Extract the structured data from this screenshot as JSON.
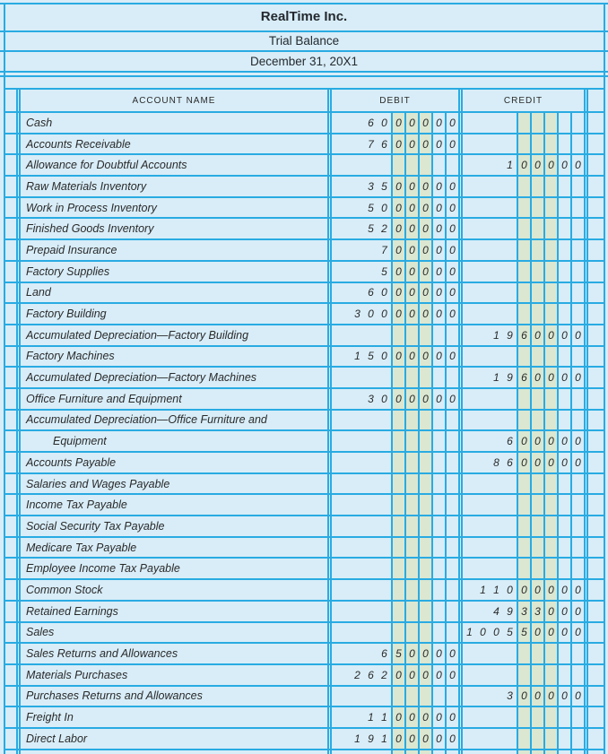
{
  "page": {
    "header": {
      "company_name": "RealTime Inc.",
      "report_title": "Trial Balance",
      "report_date": "December 31, 20X1"
    },
    "table": {
      "column_headers": {
        "account_name": "ACCOUNT NAME",
        "debit": "DEBIT",
        "credit": "CREDIT"
      },
      "rows": [
        {
          "account": "Cash",
          "debit": "6000000",
          "credit": ""
        },
        {
          "account": "Accounts Receivable",
          "debit": "7600000",
          "credit": ""
        },
        {
          "account": "Allowance for Doubtful Accounts",
          "debit": "",
          "credit": "100000"
        },
        {
          "account": "Raw Materials Inventory",
          "debit": "3500000",
          "credit": ""
        },
        {
          "account": "Work in Process Inventory",
          "debit": "5000000",
          "credit": ""
        },
        {
          "account": "Finished Goods Inventory",
          "debit": "5200000",
          "credit": ""
        },
        {
          "account": "Prepaid Insurance",
          "debit": "700000",
          "credit": ""
        },
        {
          "account": "Factory Supplies",
          "debit": "500000",
          "credit": ""
        },
        {
          "account": "Land",
          "debit": "6000000",
          "credit": ""
        },
        {
          "account": "Factory Building",
          "debit": "30000000",
          "credit": ""
        },
        {
          "account": "Accumulated Depreciation—Factory Building",
          "debit": "",
          "credit": "1960000"
        },
        {
          "account": "Factory Machines",
          "debit": "15000000",
          "credit": ""
        },
        {
          "account": "Accumulated Depreciation—Factory Machines",
          "debit": "",
          "credit": "1960000"
        },
        {
          "account": "Office Furniture and Equipment",
          "debit": "3000000",
          "credit": ""
        },
        {
          "account": "Accumulated Depreciation—Office Furniture and",
          "debit": "",
          "credit": ""
        },
        {
          "account": "Equipment",
          "indent": true,
          "debit": "",
          "credit": "600000"
        },
        {
          "account": "Accounts Payable",
          "debit": "",
          "credit": "8600000"
        },
        {
          "account": "Salaries and Wages Payable",
          "debit": "",
          "credit": ""
        },
        {
          "account": "Income Tax Payable",
          "debit": "",
          "credit": ""
        },
        {
          "account": "Social Security Tax Payable",
          "debit": "",
          "credit": ""
        },
        {
          "account": "Medicare Tax Payable",
          "debit": "",
          "credit": ""
        },
        {
          "account": "Employee Income Tax Payable",
          "debit": "",
          "credit": ""
        },
        {
          "account": "Common Stock",
          "debit": "",
          "credit": "11000000"
        },
        {
          "account": "Retained Earnings",
          "debit": "",
          "credit": "4933000"
        },
        {
          "account": "Sales",
          "debit": "",
          "credit": "100550000"
        },
        {
          "account": "Sales Returns and Allowances",
          "debit": "650000",
          "credit": ""
        },
        {
          "account": "Materials Purchases",
          "debit": "26200000",
          "credit": ""
        },
        {
          "account": "Purchases Returns and Allowances",
          "debit": "",
          "credit": "300000"
        },
        {
          "account": "Freight In",
          "debit": "1100000",
          "credit": ""
        },
        {
          "account": "Direct Labor",
          "debit": "19100000",
          "credit": ""
        }
      ]
    },
    "colors": {
      "paper_blue": "#d8edf8",
      "line_cyan": "#29abe2",
      "band_green": "#dbe7d1",
      "text_dark": "#2a2a2a"
    }
  }
}
